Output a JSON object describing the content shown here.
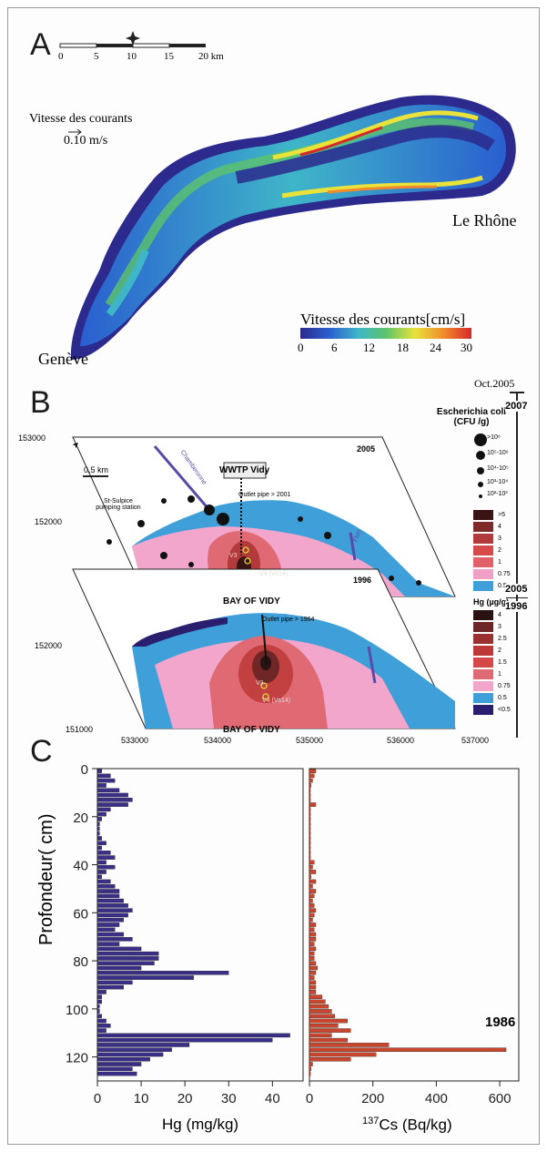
{
  "panelA": {
    "letter": "A",
    "scale_ticks": [
      "0",
      "5",
      "10",
      "15",
      "20 km"
    ],
    "current_title": "Vitesse des courants",
    "current_ref": "0.10 m/s",
    "label_rhone": "Le Rhône",
    "label_geneve": "Genève",
    "colorbar_title": "Vitesse des courants",
    "colorbar_unit": "[cm/s]",
    "colorbar_ticks": [
      "0",
      "6",
      "12",
      "18",
      "24",
      "30"
    ],
    "colorbar_colors": [
      "#2c2a8c",
      "#2a5fd0",
      "#3fb6c8",
      "#5cc36a",
      "#e8e23a",
      "#f08a2a",
      "#d8262a"
    ]
  },
  "panelB": {
    "letter": "B",
    "date_label": "Oct.2005",
    "year_2007": "2007",
    "year_2005": "2005",
    "year_1996": "1996",
    "map_year_top": "2005",
    "map_year_bottom": "1996",
    "y_ticks": [
      "153000",
      "152000",
      "152000",
      "151000"
    ],
    "x_ticks": [
      "533000",
      "534000",
      "535000",
      "536000",
      "537000"
    ],
    "scale_bar": "0.5 km",
    "wwtp": "WWTP Vidy",
    "outlet_2001": "Outlet pipe > 2001",
    "outlet_1964": "Outlet pipe > 1964",
    "st_sulpice": "St-Sulpice pumping station",
    "chamberonne": "Chamberonne",
    "flon": "Flon",
    "bay_top": "BAY OF VIDY",
    "bay_bottom": "BAY OF VIDY",
    "v3": "V3",
    "v4": "V4 (Vs14)",
    "v3b": "V3",
    "v4b": "V4 (Vs14)",
    "ecoli_title": "Escherichia coli",
    "ecoli_unit": "(CFU /g)",
    "ecoli_levels": [
      ">10⁶",
      "10⁵-10⁶",
      "10⁴-10⁵",
      "10³-10⁴",
      "10²-10³"
    ],
    "ecoli_legend_levels": [
      ">5",
      "4",
      "3",
      "2",
      "1",
      "0.75",
      "0.5"
    ],
    "ecoli_legend_colors": [
      "#3a1414",
      "#7e2a2a",
      "#b23a3a",
      "#d64a4a",
      "#e2606a",
      "#f0a0c4",
      "#3f9fd8"
    ],
    "hg_title": "Hg (µg/g)",
    "hg_levels": [
      "4",
      "3",
      "2.5",
      "2",
      "1.5",
      "1",
      "0.75",
      "0.5",
      "<0.5"
    ],
    "hg_colors": [
      "#2a1212",
      "#6e2626",
      "#9a3030",
      "#bf3838",
      "#d44848",
      "#e06a74",
      "#f2a6cc",
      "#3f9fd8",
      "#2a1f6e"
    ]
  },
  "panelC": {
    "letter": "C",
    "ylabel": "Profondeur( cm)",
    "hg_xlabel": "Hg (mg/kg)",
    "cs_xlabel_sup": "137",
    "cs_xlabel_rest": "Cs (Bq/kg)",
    "annotation_1986": "1986",
    "hg_color": "#3a2f86",
    "cs_color": "#c8462e"
  },
  "chart_data": [
    {
      "type": "bar",
      "orientation": "horizontal",
      "title": "",
      "xlabel": "Hg (mg/kg)",
      "ylabel": "Profondeur( cm)",
      "xlim": [
        0,
        47
      ],
      "ylim": [
        0,
        130
      ],
      "x_ticks": [
        "0",
        "10",
        "20",
        "30",
        "40"
      ],
      "y_ticks": [
        "0",
        "20",
        "40",
        "60",
        "80",
        "100",
        "120"
      ],
      "depth": [
        1,
        3,
        5,
        7,
        9,
        11,
        13,
        15,
        17,
        19,
        21,
        23,
        25,
        27,
        29,
        31,
        33,
        35,
        37,
        39,
        41,
        43,
        45,
        47,
        49,
        51,
        53,
        55,
        57,
        59,
        61,
        63,
        65,
        67,
        69,
        71,
        73,
        75,
        77,
        79,
        81,
        83,
        85,
        87,
        89,
        91,
        93,
        95,
        97,
        99,
        101,
        103,
        105,
        107,
        109,
        111,
        113,
        115,
        117,
        119,
        121,
        123,
        125,
        127
      ],
      "values": [
        1,
        3,
        4,
        2,
        5,
        7,
        8,
        7,
        3,
        2,
        1,
        0.5,
        0.5,
        0.5,
        1,
        2,
        1,
        3,
        4,
        2,
        4,
        2,
        1,
        3,
        4,
        5,
        5,
        6,
        7,
        8,
        7,
        6,
        5,
        4,
        6,
        8,
        5,
        10,
        14,
        14,
        13,
        10,
        30,
        22,
        8,
        6,
        2,
        1,
        1,
        0.5,
        0.5,
        1,
        2,
        3,
        2,
        44,
        40,
        21,
        17,
        15,
        12,
        10,
        8,
        9
      ]
    },
    {
      "type": "bar",
      "orientation": "horizontal",
      "title": "",
      "xlabel": "137Cs (Bq/kg)",
      "ylabel": "",
      "xlim": [
        0,
        660
      ],
      "ylim": [
        0,
        130
      ],
      "x_ticks": [
        "0",
        "200",
        "400",
        "600"
      ],
      "annotations": [
        "1986"
      ],
      "depth": [
        1,
        3,
        5,
        7,
        9,
        11,
        13,
        15,
        17,
        19,
        21,
        23,
        25,
        27,
        29,
        31,
        33,
        35,
        37,
        39,
        41,
        43,
        45,
        47,
        49,
        51,
        53,
        55,
        57,
        59,
        61,
        63,
        65,
        67,
        69,
        71,
        73,
        75,
        77,
        79,
        81,
        83,
        85,
        87,
        89,
        91,
        93,
        95,
        97,
        99,
        101,
        103,
        105,
        107,
        109,
        111,
        113,
        115,
        117,
        119,
        121,
        123,
        125,
        127
      ],
      "values": [
        20,
        15,
        10,
        5,
        3,
        3,
        3,
        20,
        3,
        3,
        3,
        3,
        3,
        3,
        3,
        3,
        3,
        3,
        3,
        15,
        10,
        20,
        5,
        20,
        10,
        20,
        15,
        10,
        15,
        20,
        15,
        10,
        20,
        15,
        20,
        20,
        15,
        20,
        15,
        15,
        20,
        25,
        20,
        15,
        20,
        20,
        20,
        40,
        50,
        60,
        70,
        80,
        120,
        90,
        130,
        70,
        120,
        250,
        620,
        210,
        130,
        10,
        5,
        3
      ]
    }
  ]
}
